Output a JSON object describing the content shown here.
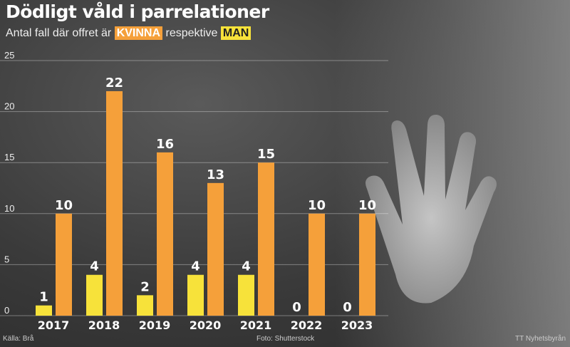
{
  "title": "Dödligt våld i parrelationer",
  "subtitle": {
    "prefix": "Antal fall där offret är",
    "woman": "KVINNA",
    "middle": "respektive",
    "man": "MAN"
  },
  "footer": {
    "source": "Källa: Brå",
    "photo": "Foto: Shutterstock",
    "agency": "TT Nyhetsbyrån"
  },
  "colors": {
    "woman": "#f5a03a",
    "man": "#f7e23a"
  },
  "chart_data": {
    "type": "bar",
    "categories": [
      "2017",
      "2018",
      "2019",
      "2020",
      "2021",
      "2022",
      "2023"
    ],
    "series": [
      {
        "name": "MAN",
        "values": [
          1,
          4,
          2,
          4,
          4,
          0,
          0
        ]
      },
      {
        "name": "KVINNA",
        "values": [
          10,
          22,
          16,
          13,
          15,
          10,
          10
        ]
      }
    ],
    "yticks": [
      "0",
      "5",
      "10",
      "15",
      "20",
      "25"
    ],
    "ylim": [
      0,
      25
    ],
    "grid": true,
    "title": "Dödligt våld i parrelationer"
  }
}
